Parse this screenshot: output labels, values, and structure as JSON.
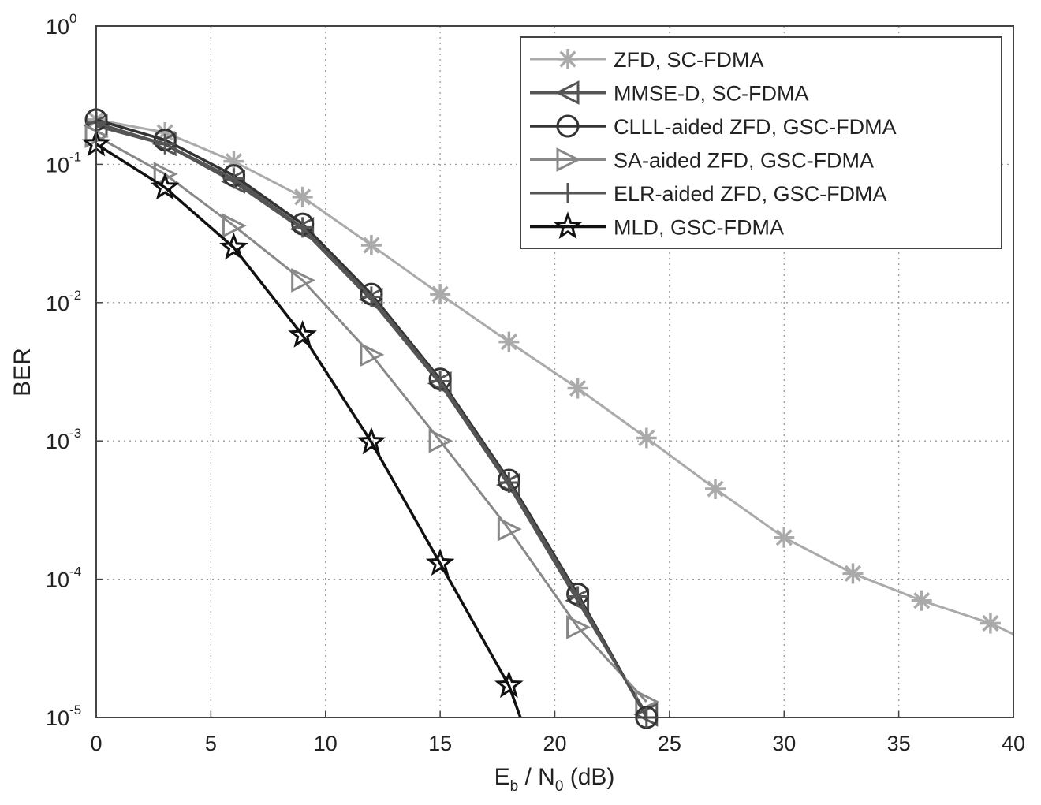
{
  "chart_data": {
    "type": "line",
    "xlabel": {
      "main": "E",
      "sub1": "b",
      "mid": " / N",
      "sub2": "0",
      "tail": " (dB)"
    },
    "ylabel": "BER",
    "xlim": [
      0,
      40
    ],
    "ylim": [
      1e-05,
      1
    ],
    "yscale": "log",
    "xticks": [
      0,
      5,
      10,
      15,
      20,
      25,
      30,
      35,
      40
    ],
    "yticks": [
      {
        "value": 1,
        "base": "10",
        "exp": "0"
      },
      {
        "value": 0.1,
        "base": "10",
        "exp": "-1"
      },
      {
        "value": 0.01,
        "base": "10",
        "exp": "-2"
      },
      {
        "value": 0.001,
        "base": "10",
        "exp": "-3"
      },
      {
        "value": 0.0001,
        "base": "10",
        "exp": "-4"
      },
      {
        "value": 1e-05,
        "base": "10",
        "exp": "-5"
      }
    ],
    "grid": true,
    "legend_position": "top-right",
    "series": [
      {
        "name": "ZFD, SC-FDMA",
        "marker": "asterisk",
        "color": "#aaaaaa",
        "width": 3,
        "x": [
          0,
          3,
          6,
          9,
          12,
          15,
          18,
          21,
          24,
          27,
          30,
          33,
          36,
          39,
          40
        ],
        "y": [
          0.21,
          0.17,
          0.105,
          0.058,
          0.026,
          0.0115,
          0.0052,
          0.0024,
          0.00105,
          0.00045,
          0.0002,
          0.00011,
          7e-05,
          4.8e-05,
          4e-05
        ]
      },
      {
        "name": "MMSE-D, SC-FDMA",
        "marker": "triangle-left",
        "color": "#555555",
        "width": 4,
        "x": [
          0,
          3,
          6,
          9,
          12,
          15,
          18,
          21,
          24
        ],
        "y": [
          0.19,
          0.14,
          0.075,
          0.034,
          0.0105,
          0.0026,
          0.00048,
          7e-05,
          1.05e-05
        ]
      },
      {
        "name": "CLLL-aided ZFD, GSC-FDMA",
        "marker": "circle",
        "color": "#333333",
        "width": 3.5,
        "x": [
          0,
          3,
          6,
          9,
          12,
          15,
          18,
          21,
          24
        ],
        "y": [
          0.21,
          0.15,
          0.083,
          0.037,
          0.0115,
          0.0028,
          0.00052,
          7.8e-05,
          1e-05
        ]
      },
      {
        "name": "SA-aided ZFD, GSC-FDMA",
        "marker": "triangle-right",
        "color": "#888888",
        "width": 3,
        "x": [
          0,
          3,
          6,
          9,
          12,
          15,
          18,
          21,
          24
        ],
        "y": [
          0.16,
          0.085,
          0.036,
          0.0145,
          0.0042,
          0.001,
          0.00023,
          4.5e-05,
          1.3e-05
        ]
      },
      {
        "name": "ELR-aided ZFD, GSC-FDMA",
        "marker": "plus",
        "color": "#555555",
        "width": 3,
        "x": [
          0,
          3,
          6,
          9,
          12,
          15,
          18,
          21,
          24
        ],
        "y": [
          0.2,
          0.14,
          0.079,
          0.035,
          0.011,
          0.0027,
          0.0005,
          7.5e-05,
          1e-05
        ]
      },
      {
        "name": "MLD, GSC-FDMA",
        "marker": "star",
        "color": "#111111",
        "width": 3.5,
        "x": [
          0,
          3,
          6,
          9,
          12,
          15,
          18,
          18.5
        ],
        "y": [
          0.14,
          0.068,
          0.025,
          0.0058,
          0.00098,
          0.00013,
          1.7e-05,
          1e-05
        ]
      }
    ]
  }
}
